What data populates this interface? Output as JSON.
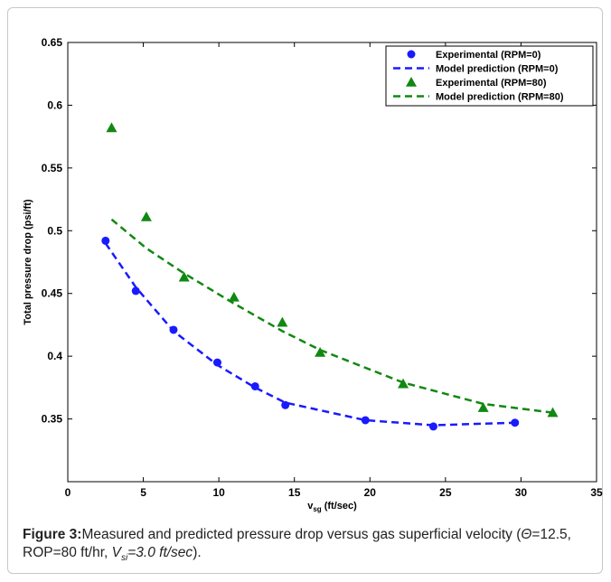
{
  "chart_data": {
    "type": "scatter",
    "xlabel": {
      "base": "v",
      "sub": "sg",
      "rest": " (ft/sec)"
    },
    "ylabel": "Total pressure drop (psi/ft)",
    "xlim": [
      0,
      35
    ],
    "ylim": [
      0.3,
      0.65
    ],
    "xticks": [
      0,
      5,
      10,
      15,
      20,
      25,
      30,
      35
    ],
    "yticks": [
      0.35,
      0.4,
      0.45,
      0.5,
      0.55,
      0.6,
      0.65
    ],
    "ytick_labels": [
      "0.35",
      "0.4",
      "0.45",
      "0.5",
      "0.55",
      "0.6",
      "0.65"
    ],
    "grid": false,
    "legend_position": "top-right",
    "series": [
      {
        "name": "Experimental (RPM=0)",
        "kind": "markers",
        "marker": "circle",
        "color": "#1a1aff",
        "x": [
          2.5,
          4.5,
          7.0,
          9.9,
          12.4,
          14.4,
          19.7,
          24.2,
          29.6
        ],
        "y": [
          0.492,
          0.452,
          0.421,
          0.395,
          0.376,
          0.361,
          0.349,
          0.344,
          0.347
        ]
      },
      {
        "name": "Model prediction (RPM=0)",
        "kind": "dashed-line",
        "color": "#1a1aff",
        "x": [
          2.5,
          4.5,
          7.0,
          9.9,
          12.4,
          14.4,
          19.7,
          24.2,
          29.6
        ],
        "y": [
          0.49,
          0.455,
          0.42,
          0.393,
          0.375,
          0.363,
          0.349,
          0.345,
          0.347
        ]
      },
      {
        "name": "Experimental (RPM=80)",
        "kind": "markers",
        "marker": "triangle",
        "color": "#118811",
        "x": [
          2.9,
          5.2,
          7.7,
          11.0,
          14.2,
          16.7,
          22.2,
          27.5,
          32.1
        ],
        "y": [
          0.582,
          0.511,
          0.463,
          0.447,
          0.427,
          0.403,
          0.378,
          0.359,
          0.355
        ]
      },
      {
        "name": "Model prediction (RPM=80)",
        "kind": "dashed-line",
        "color": "#118811",
        "x": [
          2.9,
          5.2,
          7.7,
          11.0,
          14.2,
          16.7,
          22.2,
          27.5,
          32.1
        ],
        "y": [
          0.509,
          0.486,
          0.466,
          0.442,
          0.42,
          0.405,
          0.379,
          0.362,
          0.355
        ]
      }
    ]
  },
  "caption": {
    "label": "Figure  3:",
    "text": "Measured and predicted pressure drop versus gas superficial velocity (",
    "theta": "Θ",
    "theta_rest": "=12.5, ROP=80 ft/hr, ",
    "v": "V",
    "v_sub": "si",
    "v_rest": "=3.0 ft/sec",
    "end": ")."
  }
}
